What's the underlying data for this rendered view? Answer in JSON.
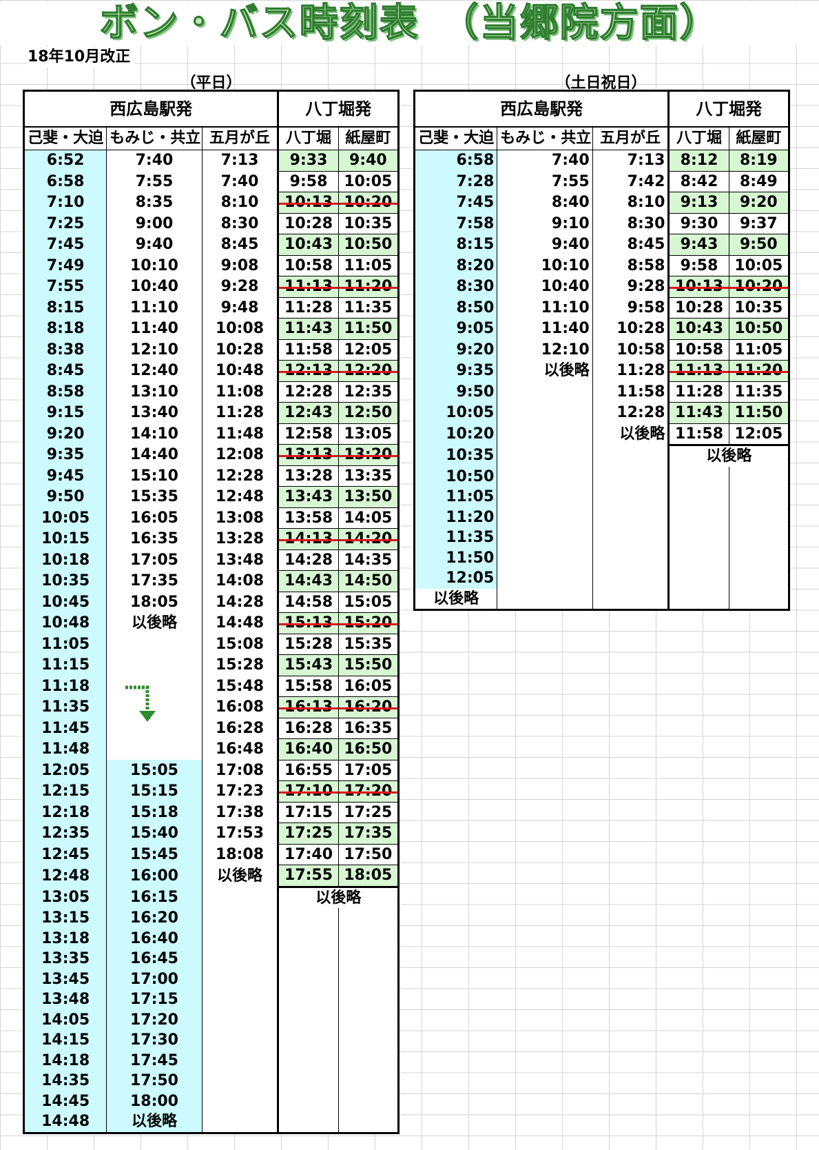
{
  "title": "ボン・バス時刻表　（当郷院方面）",
  "revision": "18年10月改正",
  "weekday": {
    "caption": "（平日）",
    "group_headers": [
      "西広島駅発",
      "八丁堀発"
    ],
    "columns": [
      "己斐・大迫",
      "もみじ・共立",
      "五月が丘",
      "八丁堀",
      "紙屋町"
    ],
    "col1": [
      "6:52",
      "6:58",
      "7:10",
      "7:25",
      "7:45",
      "7:49",
      "7:55",
      "8:15",
      "8:18",
      "8:38",
      "8:45",
      "8:58",
      "9:15",
      "9:20",
      "9:35",
      "9:45",
      "9:50",
      "10:05",
      "10:15",
      "10:18",
      "10:35",
      "10:45",
      "10:48",
      "11:05",
      "11:15",
      "11:18",
      "11:35",
      "11:45",
      "11:48",
      "12:05",
      "12:15",
      "12:18",
      "12:35",
      "12:45",
      "12:48",
      "13:05",
      "13:15",
      "13:18",
      "13:35",
      "13:45",
      "13:48",
      "14:05",
      "14:15",
      "14:18",
      "14:35",
      "14:45",
      "14:48"
    ],
    "col2": [
      "7:40",
      "7:55",
      "8:35",
      "9:00",
      "9:40",
      "10:10",
      "10:40",
      "11:10",
      "11:40",
      "12:10",
      "12:40",
      "13:10",
      "13:40",
      "14:10",
      "14:40",
      "15:10",
      "15:35",
      "16:05",
      "16:35",
      "17:05",
      "17:35",
      "18:05",
      "以後略",
      "",
      "",
      "",
      "",
      "",
      "",
      "15:05",
      "15:15",
      "15:18",
      "15:40",
      "15:45",
      "16:00",
      "16:15",
      "16:20",
      "16:40",
      "16:45",
      "17:00",
      "17:15",
      "17:20",
      "17:30",
      "17:45",
      "17:50",
      "18:00",
      "以後略"
    ],
    "col3": [
      "7:13",
      "7:40",
      "8:10",
      "8:30",
      "8:45",
      "9:08",
      "9:28",
      "9:48",
      "10:08",
      "10:28",
      "10:48",
      "11:08",
      "11:28",
      "11:48",
      "12:08",
      "12:28",
      "12:48",
      "13:08",
      "13:28",
      "13:48",
      "14:08",
      "14:28",
      "14:48",
      "15:08",
      "15:28",
      "15:48",
      "16:08",
      "16:28",
      "16:48",
      "17:08",
      "17:23",
      "17:38",
      "17:53",
      "18:08",
      "以後略"
    ],
    "col4": [
      "9:33",
      "9:58",
      "10:13",
      "10:28",
      "10:43",
      "10:58",
      "11:13",
      "11:28",
      "11:43",
      "11:58",
      "12:13",
      "12:28",
      "12:43",
      "12:58",
      "13:13",
      "13:28",
      "13:43",
      "13:58",
      "14:13",
      "14:28",
      "14:43",
      "14:58",
      "15:13",
      "15:28",
      "15:43",
      "15:58",
      "16:13",
      "16:28",
      "16:40",
      "16:55",
      "17:10",
      "17:15",
      "17:25",
      "17:40",
      "17:55"
    ],
    "col5": [
      "9:40",
      "10:05",
      "10:20",
      "10:35",
      "10:50",
      "11:05",
      "11:20",
      "11:35",
      "11:50",
      "12:05",
      "12:20",
      "12:35",
      "12:50",
      "13:05",
      "13:20",
      "13:35",
      "13:50",
      "14:05",
      "14:20",
      "14:35",
      "14:50",
      "15:05",
      "15:20",
      "15:35",
      "15:50",
      "16:05",
      "16:20",
      "16:35",
      "16:50",
      "17:05",
      "17:20",
      "17:25",
      "17:35",
      "17:50",
      "18:05"
    ],
    "after": "以後略"
  },
  "weekend": {
    "caption": "（土日祝日）",
    "group_headers": [
      "西広島駅発",
      "八丁堀発"
    ],
    "columns": [
      "己斐・大迫",
      "もみじ・共立",
      "五月が丘",
      "八丁堀",
      "紙屋町"
    ],
    "col1": [
      "6:58",
      "7:28",
      "7:45",
      "7:58",
      "8:15",
      "8:20",
      "8:30",
      "8:50",
      "9:05",
      "9:20",
      "9:35",
      "9:50",
      "10:05",
      "10:20",
      "10:35",
      "10:50",
      "11:05",
      "11:20",
      "11:35",
      "11:50",
      "12:05",
      "以後略"
    ],
    "col2": [
      "7:40",
      "7:55",
      "8:40",
      "9:10",
      "9:40",
      "10:10",
      "10:40",
      "11:10",
      "11:40",
      "12:10",
      "以後略"
    ],
    "col3": [
      "7:13",
      "7:42",
      "8:10",
      "8:30",
      "8:45",
      "8:58",
      "9:28",
      "9:58",
      "10:28",
      "10:58",
      "11:28",
      "11:58",
      "12:28",
      "以後略"
    ],
    "col4": [
      "8:12",
      "8:42",
      "9:13",
      "9:30",
      "9:43",
      "9:58",
      "10:13",
      "10:28",
      "10:43",
      "10:58",
      "11:13",
      "11:28",
      "11:43",
      "11:58"
    ],
    "col5": [
      "8:19",
      "8:49",
      "9:20",
      "9:37",
      "9:50",
      "10:05",
      "10:20",
      "10:35",
      "10:50",
      "11:05",
      "11:20",
      "11:35",
      "11:50",
      "12:05"
    ],
    "after": "以後略"
  }
}
